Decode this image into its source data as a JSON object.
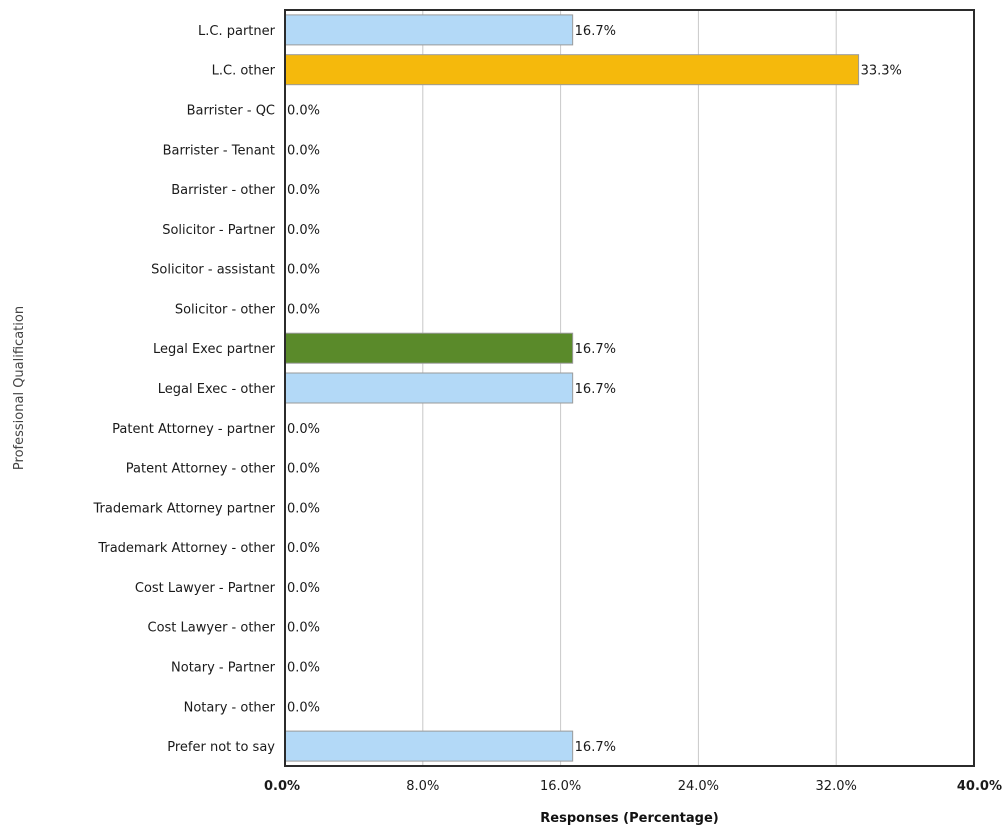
{
  "chart_data": {
    "type": "bar",
    "orientation": "horizontal",
    "categories": [
      "L.C. partner",
      "L.C. other",
      "Barrister - QC",
      "Barrister - Tenant",
      "Barrister - other",
      "Solicitor - Partner",
      "Solicitor - assistant",
      "Solicitor - other",
      "Legal Exec partner",
      "Legal Exec - other",
      "Patent Attorney - partner",
      "Patent Attorney - other",
      "Trademark Attorney partner",
      "Trademark Attorney - other",
      "Cost Lawyer - Partner",
      "Cost Lawyer - other",
      "Notary - Partner",
      "Notary - other",
      "Prefer not to say"
    ],
    "values": [
      16.7,
      33.3,
      0.0,
      0.0,
      0.0,
      0.0,
      0.0,
      0.0,
      16.7,
      16.7,
      0.0,
      0.0,
      0.0,
      0.0,
      0.0,
      0.0,
      0.0,
      0.0,
      16.7
    ],
    "value_labels": [
      "16.7%",
      "33.3%",
      "0.0%",
      "0.0%",
      "0.0%",
      "0.0%",
      "0.0%",
      "0.0%",
      "16.7%",
      "16.7%",
      "0.0%",
      "0.0%",
      "0.0%",
      "0.0%",
      "0.0%",
      "0.0%",
      "0.0%",
      "0.0%",
      "16.7%"
    ],
    "bar_colors": [
      "#b3d9f7",
      "#f5b90c",
      "#b3d9f7",
      "#b3d9f7",
      "#b3d9f7",
      "#b3d9f7",
      "#b3d9f7",
      "#b3d9f7",
      "#5a8a2a",
      "#b3d9f7",
      "#b3d9f7",
      "#b3d9f7",
      "#b3d9f7",
      "#b3d9f7",
      "#b3d9f7",
      "#b3d9f7",
      "#b3d9f7",
      "#b3d9f7",
      "#b3d9f7"
    ],
    "xlabel": "Responses (Percentage)",
    "ylabel": "Professional Qualification",
    "xlim": [
      0,
      40
    ],
    "xticks": [
      0,
      8,
      16,
      24,
      32,
      40
    ],
    "xtick_labels": [
      "0.0%",
      "8.0%",
      "16.0%",
      "24.0%",
      "32.0%",
      "40.0%"
    ],
    "grid": "vertical",
    "title": ""
  }
}
